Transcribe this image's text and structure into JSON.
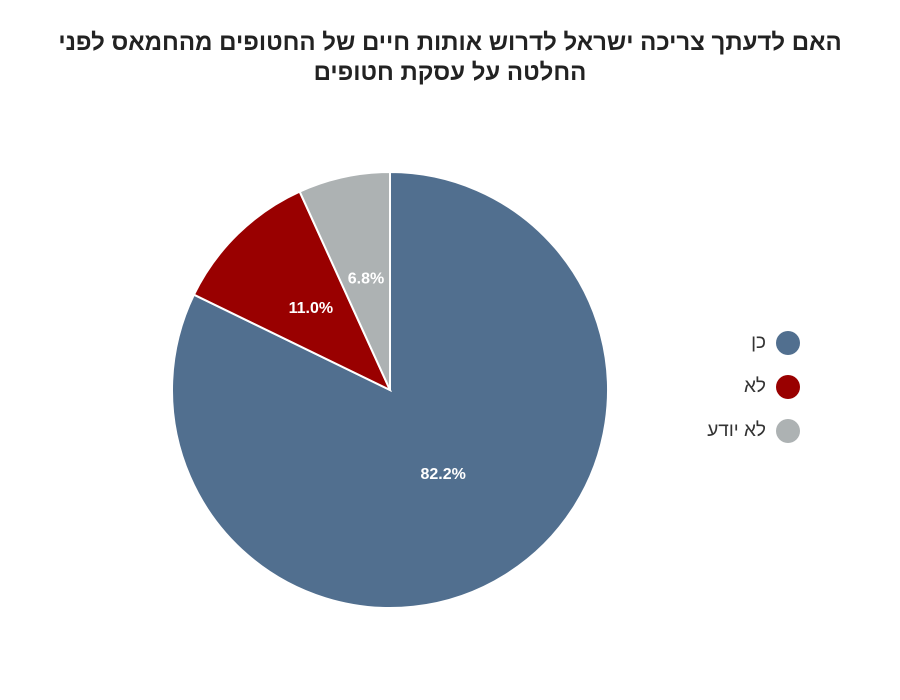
{
  "chart_data": {
    "type": "pie",
    "title": "האם לדעתך צריכה ישראל לדרוש אותות חיים של החטופים מהחמאס לפני החלטה על עסקת חטופים",
    "categories": [
      "כן",
      "לא",
      "לא יודע"
    ],
    "values": [
      82.2,
      11.0,
      6.8
    ],
    "value_labels": [
      "82.2%",
      "11.0%",
      "6.8%"
    ],
    "colors": [
      "#516f8f",
      "#990000",
      "#adb2b3"
    ],
    "legend_position": "right",
    "start_angle": "12 o'clock",
    "direction": "clockwise"
  }
}
